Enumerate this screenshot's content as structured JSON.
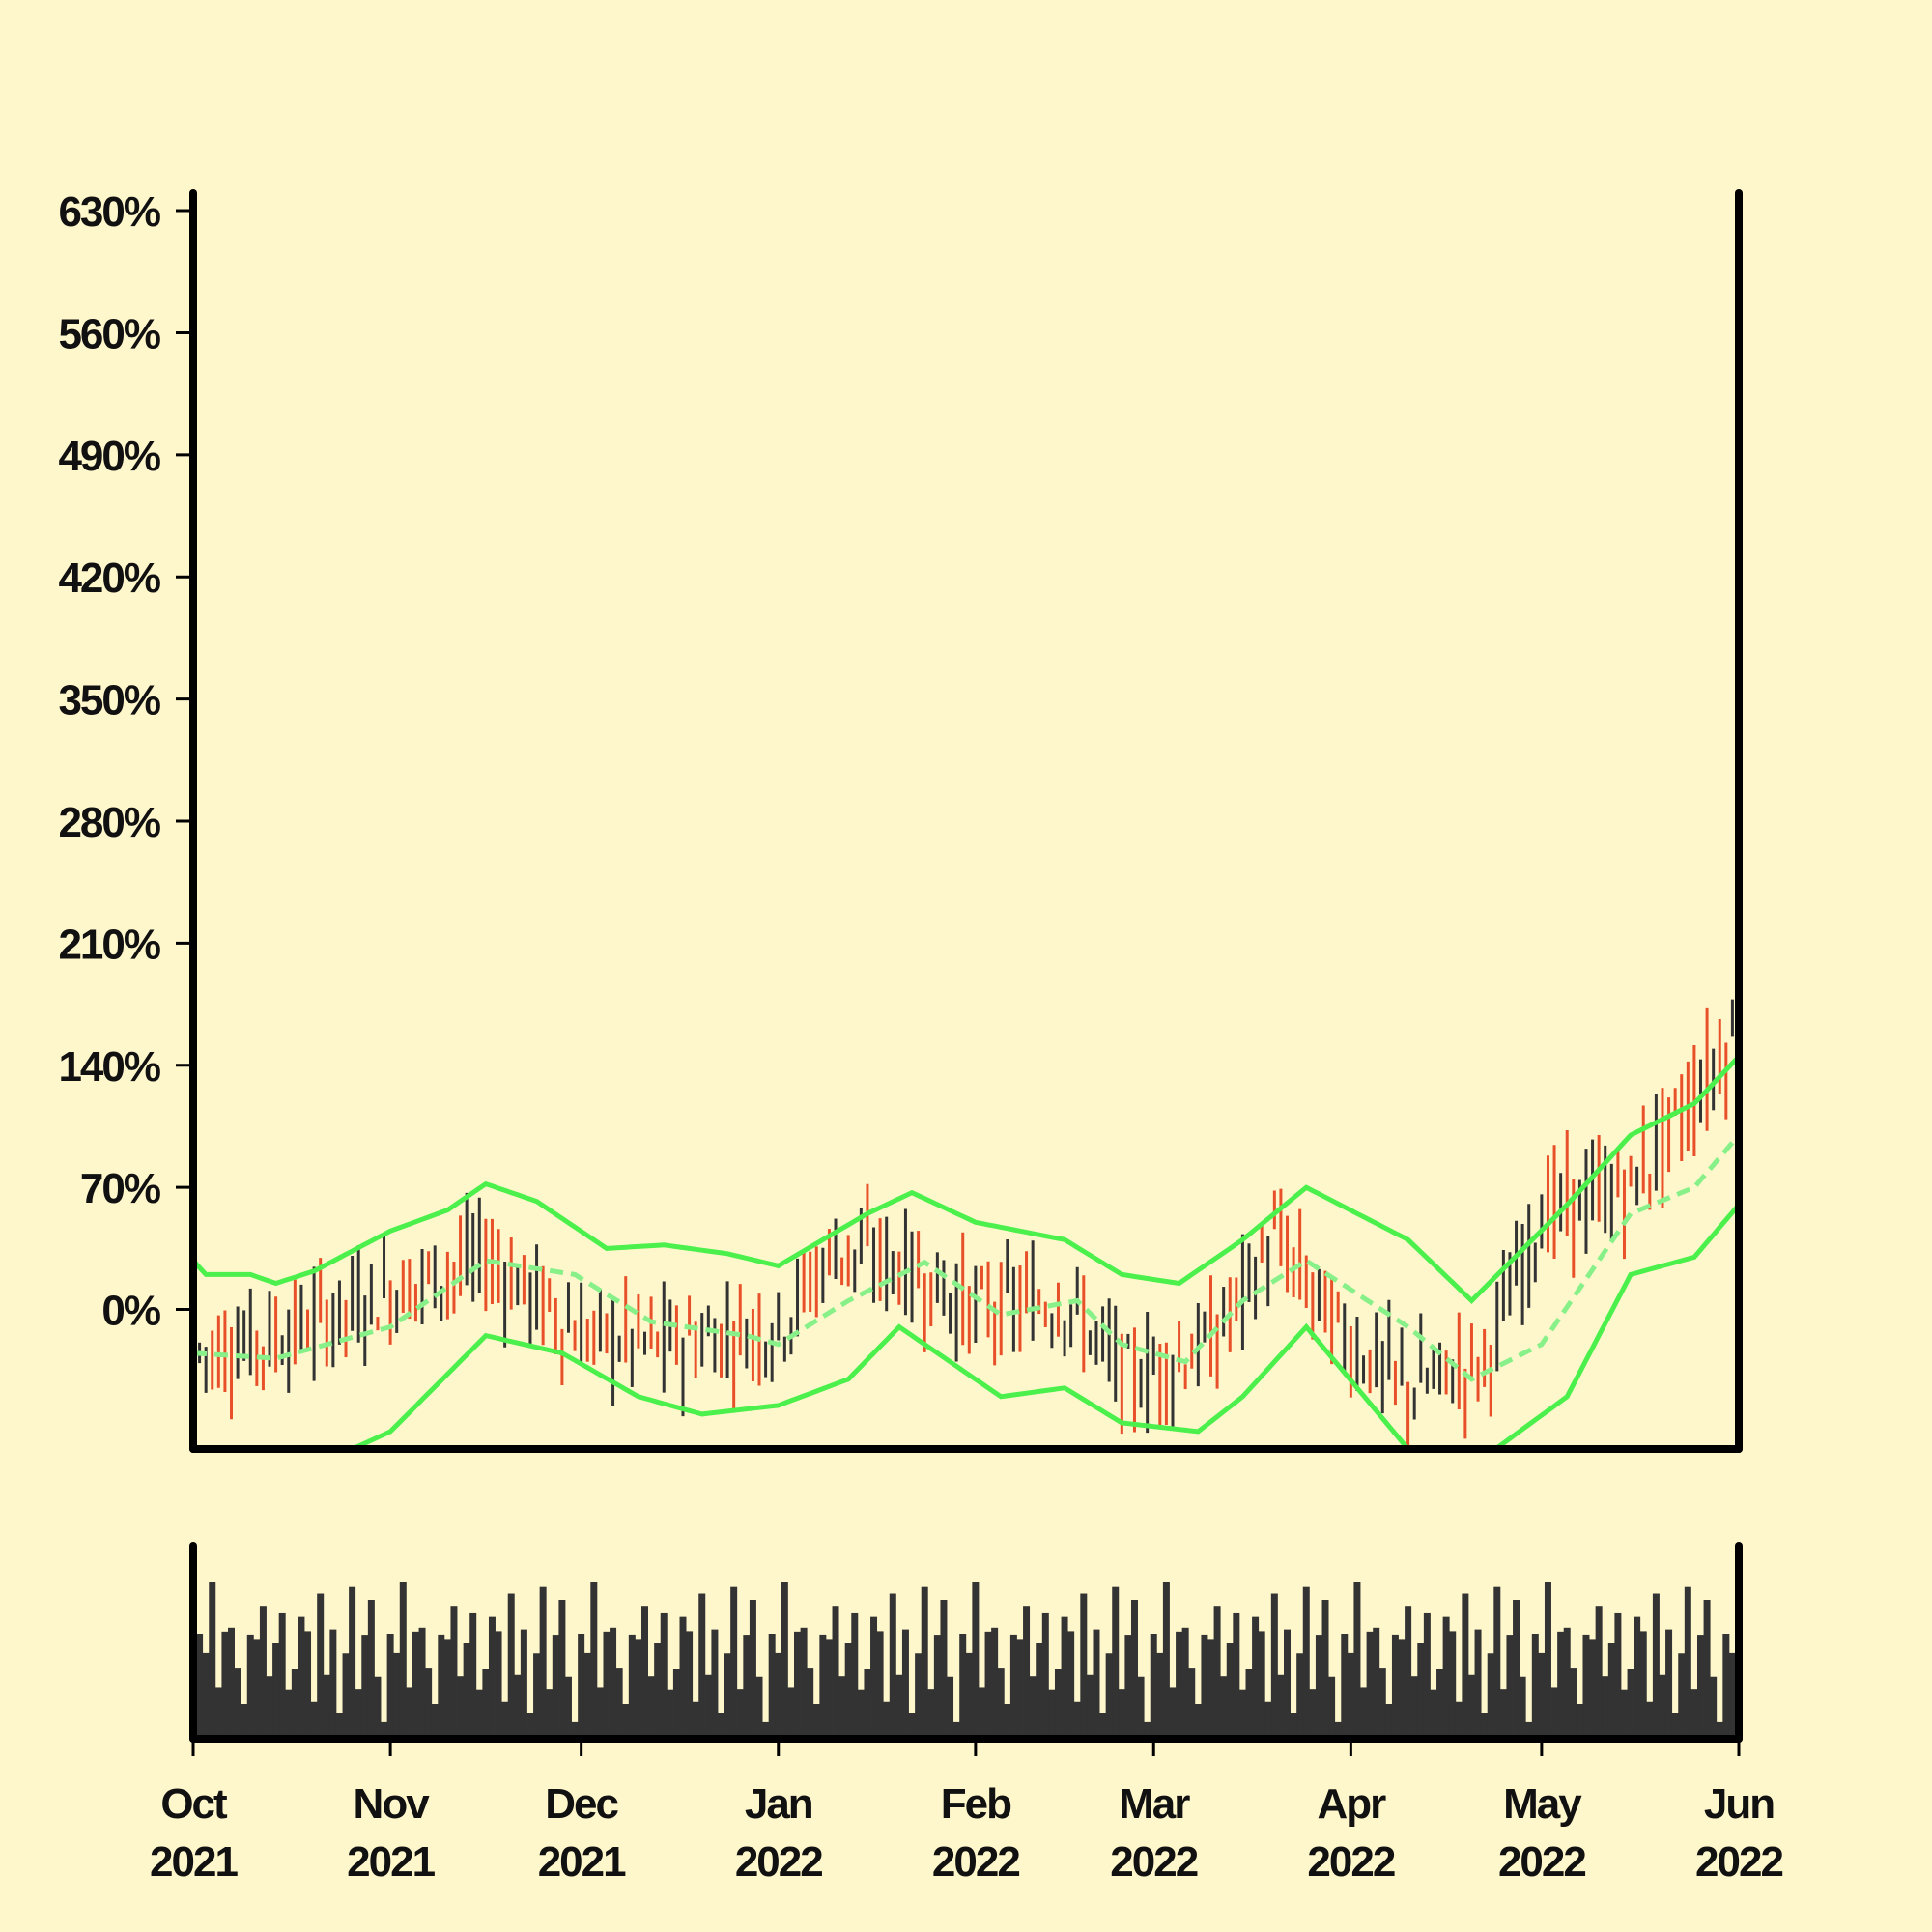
{
  "chart_data": {
    "type": "ohlc",
    "title": "",
    "xlabel": "",
    "ylabel": "",
    "background": "#fff7cc",
    "colors": {
      "up": "#333333",
      "down": "#e8502a",
      "band": "#4cf04c",
      "band_mid": "#88f088",
      "volume": "#333333",
      "axis": "#000000"
    },
    "price_axis": {
      "ylim": [
        -80,
        640
      ],
      "ticks": [
        0,
        70,
        140,
        210,
        280,
        350,
        420,
        490,
        560,
        630
      ],
      "tick_labels": [
        "0%",
        "70%",
        "140%",
        "210%",
        "280%",
        "350%",
        "420%",
        "490%",
        "560%",
        "630%"
      ]
    },
    "x_axis": {
      "start_date": "2021-10-01",
      "end_date": "2022-06-01",
      "ticks": [
        "2021-10-01",
        "2021-11-01",
        "2021-12-01",
        "2022-01-01",
        "2022-02-01",
        "2022-03-01",
        "2022-04-01",
        "2022-05-01",
        "2022-06-01"
      ],
      "tick_labels": [
        [
          "Oct",
          "2021"
        ],
        [
          "Nov",
          "2021"
        ],
        [
          "Dec",
          "2021"
        ],
        [
          "Jan",
          "2022"
        ],
        [
          "Feb",
          "2022"
        ],
        [
          "Mar",
          "2022"
        ],
        [
          "Apr",
          "2022"
        ],
        [
          "May",
          "2022"
        ],
        [
          "Jun",
          "2022"
        ]
      ]
    },
    "price_trend": [
      [
        "2021-10-01",
        -25
      ],
      [
        "2021-10-15",
        -15
      ],
      [
        "2021-11-01",
        10
      ],
      [
        "2021-11-16",
        30
      ],
      [
        "2021-12-01",
        -15
      ],
      [
        "2021-12-15",
        -20
      ],
      [
        "2022-01-01",
        -10
      ],
      [
        "2022-01-10",
        35
      ],
      [
        "2022-01-20",
        25
      ],
      [
        "2022-02-01",
        0
      ],
      [
        "2022-02-15",
        5
      ],
      [
        "2022-02-25",
        -40
      ],
      [
        "2022-03-10",
        -20
      ],
      [
        "2022-03-20",
        40
      ],
      [
        "2022-04-01",
        -20
      ],
      [
        "2022-04-10",
        -45
      ],
      [
        "2022-04-22",
        -30
      ],
      [
        "2022-05-01",
        55
      ],
      [
        "2022-05-15",
        70
      ],
      [
        "2022-06-01",
        160
      ]
    ],
    "bollinger_bands": {
      "upper": [
        [
          "2021-10-01",
          28
        ],
        [
          "2021-10-03",
          20
        ],
        [
          "2021-10-10",
          20
        ],
        [
          "2021-10-14",
          15
        ],
        [
          "2021-10-20",
          22
        ],
        [
          "2021-11-01",
          45
        ],
        [
          "2021-11-10",
          57
        ],
        [
          "2021-11-16",
          72
        ],
        [
          "2021-11-24",
          62
        ],
        [
          "2021-12-05",
          35
        ],
        [
          "2021-12-14",
          37
        ],
        [
          "2021-12-24",
          32
        ],
        [
          "2022-01-01",
          25
        ],
        [
          "2022-01-15",
          55
        ],
        [
          "2022-01-22",
          67
        ],
        [
          "2022-02-01",
          50
        ],
        [
          "2022-02-15",
          40
        ],
        [
          "2022-02-24",
          20
        ],
        [
          "2022-03-05",
          15
        ],
        [
          "2022-03-15",
          40
        ],
        [
          "2022-03-25",
          70
        ],
        [
          "2022-04-10",
          40
        ],
        [
          "2022-04-20",
          5
        ],
        [
          "2022-05-05",
          60
        ],
        [
          "2022-05-15",
          100
        ],
        [
          "2022-05-25",
          118
        ],
        [
          "2022-06-01",
          145
        ]
      ],
      "middle": [
        [
          "2021-10-01",
          -25
        ],
        [
          "2021-10-14",
          -28
        ],
        [
          "2021-11-01",
          -10
        ],
        [
          "2021-11-16",
          28
        ],
        [
          "2021-11-30",
          20
        ],
        [
          "2021-12-12",
          -7
        ],
        [
          "2021-12-27",
          -15
        ],
        [
          "2022-01-01",
          -20
        ],
        [
          "2022-01-12",
          5
        ],
        [
          "2022-01-24",
          27
        ],
        [
          "2022-02-05",
          -3
        ],
        [
          "2022-02-17",
          5
        ],
        [
          "2022-02-24",
          -20
        ],
        [
          "2022-03-06",
          -30
        ],
        [
          "2022-03-15",
          5
        ],
        [
          "2022-03-25",
          28
        ],
        [
          "2022-04-10",
          -10
        ],
        [
          "2022-04-20",
          -40
        ],
        [
          "2022-05-01",
          -20
        ],
        [
          "2022-05-15",
          55
        ],
        [
          "2022-05-25",
          70
        ],
        [
          "2022-06-01",
          100
        ]
      ],
      "lower": [
        [
          "2021-10-01",
          -130
        ],
        [
          "2021-10-20",
          -90
        ],
        [
          "2021-11-01",
          -70
        ],
        [
          "2021-11-16",
          -15
        ],
        [
          "2021-11-28",
          -25
        ],
        [
          "2021-12-10",
          -50
        ],
        [
          "2021-12-20",
          -60
        ],
        [
          "2022-01-01",
          -55
        ],
        [
          "2022-01-12",
          -40
        ],
        [
          "2022-01-20",
          -10
        ],
        [
          "2022-02-05",
          -50
        ],
        [
          "2022-02-15",
          -45
        ],
        [
          "2022-02-24",
          -65
        ],
        [
          "2022-03-08",
          -70
        ],
        [
          "2022-03-15",
          -50
        ],
        [
          "2022-03-25",
          -10
        ],
        [
          "2022-04-10",
          -80
        ],
        [
          "2022-04-20",
          -90
        ],
        [
          "2022-05-05",
          -50
        ],
        [
          "2022-05-15",
          20
        ],
        [
          "2022-05-25",
          30
        ],
        [
          "2022-06-01",
          60
        ]
      ]
    },
    "volume": {
      "pattern": [
        0.75,
        0.55,
        0.9,
        0.35,
        0.65,
        0.8,
        0.45,
        0.2,
        0.7,
        0.6,
        0.95,
        0.4,
        0.55,
        0.85,
        0.3,
        0.5,
        0.78,
        0.62,
        0.25,
        0.88,
        0.46,
        0.7,
        0.15,
        0.58,
        0.92,
        0.36,
        0.66,
        0.8,
        0.42,
        0.1
      ]
    }
  }
}
